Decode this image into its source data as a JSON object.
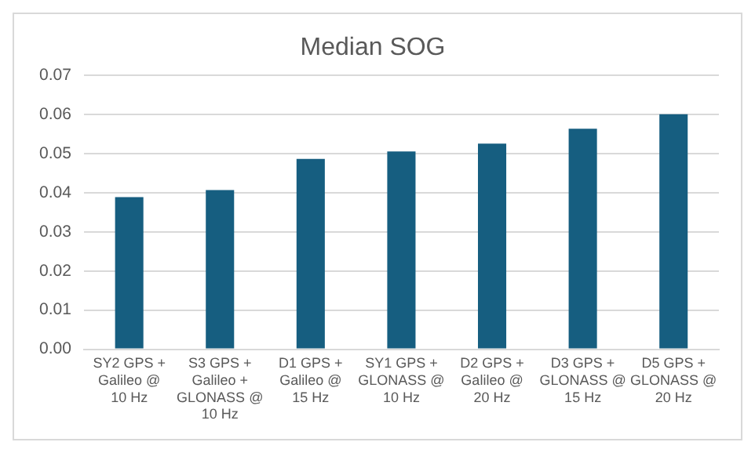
{
  "chart_data": {
    "type": "bar",
    "title": "Median SOG",
    "categories": [
      "SY2 GPS + Galileo @ 10 Hz",
      "S3 GPS + Galileo + GLONASS @ 10 Hz",
      "D1 GPS + Galileo @ 15 Hz",
      "SY1 GPS + GLONASS @ 10 Hz",
      "D2 GPS + Galileo @ 20 Hz",
      "D3 GPS + GLONASS @ 15 Hz",
      "D5 GPS + GLONASS @ 20 Hz"
    ],
    "values": [
      0.0389,
      0.0407,
      0.0487,
      0.0506,
      0.0526,
      0.0564,
      0.0601
    ],
    "color": "#165e80",
    "ylim": [
      0,
      0.07
    ],
    "yticks": [
      {
        "value": 0,
        "label": "0.00"
      },
      {
        "value": 0.01,
        "label": "0.01"
      },
      {
        "value": 0.02,
        "label": "0.02"
      },
      {
        "value": 0.03,
        "label": "0.03"
      },
      {
        "value": 0.04,
        "label": "0.04"
      },
      {
        "value": 0.05,
        "label": "0.05"
      },
      {
        "value": 0.06,
        "label": "0.06"
      },
      {
        "value": 0.07,
        "label": "0.07"
      }
    ],
    "grid": "y"
  }
}
